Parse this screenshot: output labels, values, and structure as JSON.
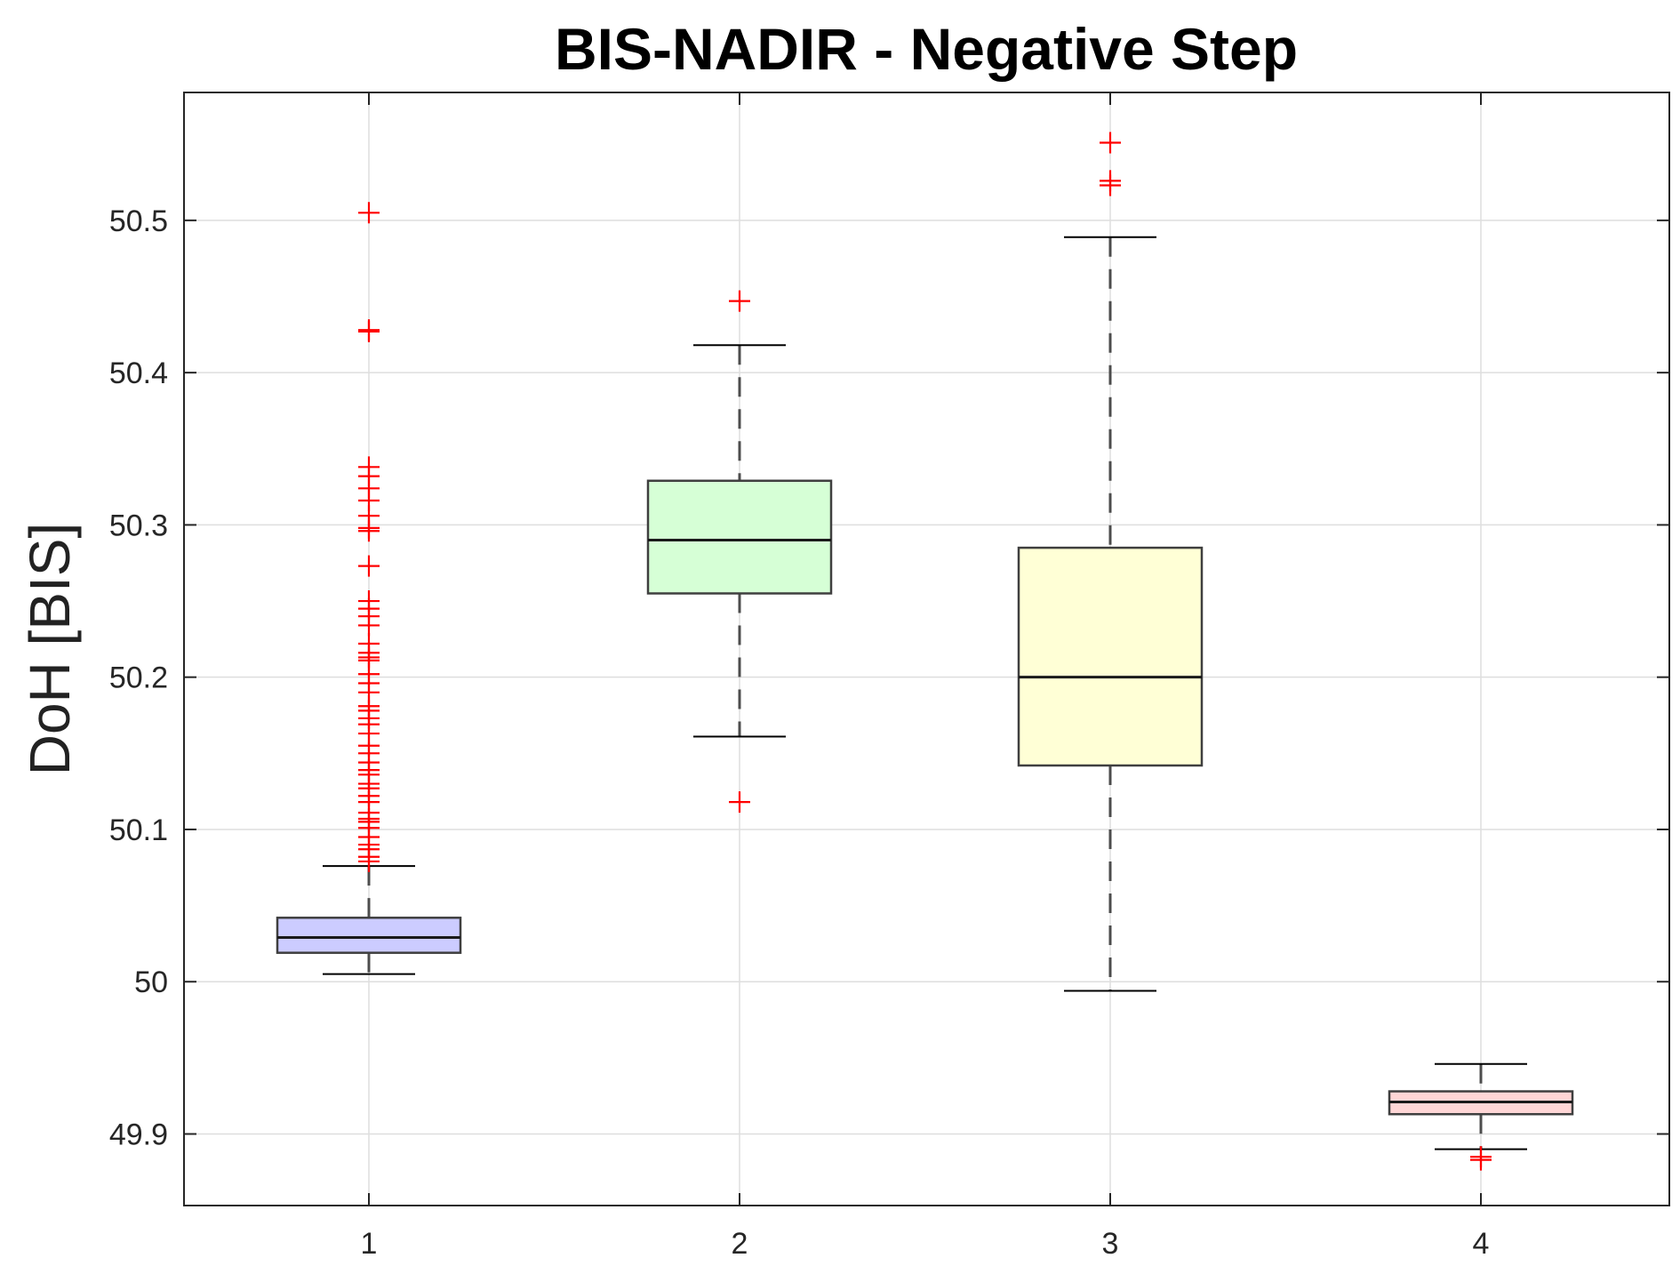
{
  "chart_data": {
    "type": "boxplot",
    "title": "BIS-NADIR - Negative Step",
    "xlabel": "",
    "ylabel": "DoH [BIS]",
    "categories": [
      "1",
      "2",
      "3",
      "4"
    ],
    "ylim": [
      49.853,
      50.584
    ],
    "yticks": [
      49.9,
      50,
      50.1,
      50.2,
      50.3,
      50.4,
      50.5
    ],
    "ytick_labels": [
      "49.9",
      "50",
      "50.1",
      "50.2",
      "50.3",
      "50.4",
      "50.5"
    ],
    "grid": true,
    "outlier_marker": "+",
    "outlier_color": "#ff0000",
    "series": [
      {
        "category": "1",
        "fill_color": "#ccccff",
        "whisker_low": 50.005,
        "q1": 50.019,
        "median": 50.029,
        "q3": 50.042,
        "whisker_high": 50.076,
        "outliers": [
          50.505,
          50.428,
          50.427,
          50.338,
          50.332,
          50.324,
          50.316,
          50.306,
          50.298,
          50.296,
          50.273,
          50.25,
          50.245,
          50.24,
          50.234,
          50.222,
          50.216,
          50.213,
          50.211,
          50.202,
          50.196,
          50.19,
          50.181,
          50.178,
          50.173,
          50.169,
          50.163,
          50.155,
          50.15,
          50.144,
          50.139,
          50.136,
          50.13,
          50.127,
          50.122,
          50.118,
          50.111,
          50.107,
          50.105,
          50.101,
          50.095,
          50.09,
          50.087,
          50.082,
          50.079
        ]
      },
      {
        "category": "2",
        "fill_color": "#d6ffd6",
        "whisker_low": 50.161,
        "q1": 50.255,
        "median": 50.29,
        "q3": 50.329,
        "whisker_high": 50.418,
        "outliers": [
          50.447,
          50.118
        ]
      },
      {
        "category": "3",
        "fill_color": "#ffffd6",
        "whisker_low": 49.994,
        "q1": 50.142,
        "median": 50.2,
        "q3": 50.285,
        "whisker_high": 50.489,
        "outliers": [
          50.551,
          50.526,
          50.523
        ]
      },
      {
        "category": "4",
        "fill_color": "#ffd6d6",
        "whisker_low": 49.89,
        "q1": 49.913,
        "median": 49.921,
        "q3": 49.928,
        "whisker_high": 49.946,
        "outliers": [
          49.885,
          49.883
        ]
      }
    ]
  }
}
